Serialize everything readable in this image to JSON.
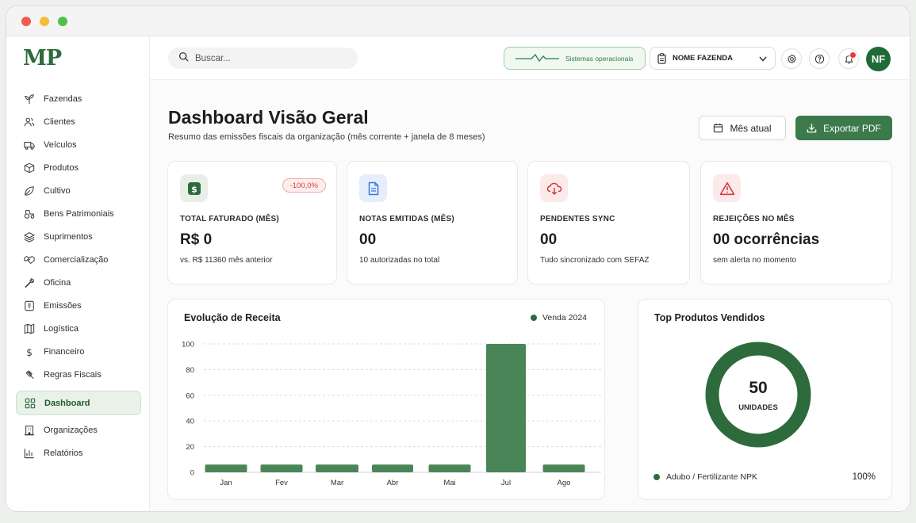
{
  "app": {
    "logo": "MP"
  },
  "sidebar": {
    "items": [
      {
        "label": "Fazendas",
        "icon": "sprout-icon"
      },
      {
        "label": "Clientes",
        "icon": "users-icon"
      },
      {
        "label": "Veículos",
        "icon": "truck-icon"
      },
      {
        "label": "Produtos",
        "icon": "box-icon"
      },
      {
        "label": "Cultivo",
        "icon": "leaf-icon"
      },
      {
        "label": "Bens Patrimoniais",
        "icon": "tractor-icon"
      },
      {
        "label": "Suprimentos",
        "icon": "layers-icon"
      },
      {
        "label": "Comercialização",
        "icon": "handshake-icon"
      },
      {
        "label": "Oficina",
        "icon": "wrench-icon"
      },
      {
        "label": "Emissões",
        "icon": "receipt-icon"
      },
      {
        "label": "Logística",
        "icon": "map-icon"
      },
      {
        "label": "Financeiro",
        "icon": "dollar-icon"
      },
      {
        "label": "Regras Fiscais",
        "icon": "gavel-icon"
      },
      {
        "label": "Dashboard",
        "icon": "grid-icon",
        "active": true
      },
      {
        "label": "Organizações",
        "icon": "building-icon"
      },
      {
        "label": "Relatórios",
        "icon": "bar-chart-icon"
      }
    ]
  },
  "topbar": {
    "search_placeholder": "Buscar...",
    "status_label": "Sistemas operacionais",
    "farm_label": "NOME FAZENDA",
    "avatar_initials": "NF"
  },
  "page": {
    "title": "Dashboard Visão Geral",
    "subtitle": "Resumo das emissões fiscais da organização (mês corrente + janela de 8 meses)",
    "month_button": "Mês atual",
    "export_button": "Exportar PDF"
  },
  "kpis": [
    {
      "label": "TOTAL FATURADO (MÊS)",
      "value": "R$ 0",
      "note": "vs. R$ 11360 mês anterior",
      "badge": "-100,0%",
      "icon": "dollar-icon",
      "color": "#2e6b3c"
    },
    {
      "label": "NOTAS EMITIDAS (MÊS)",
      "value": "00",
      "note": "10 autorizadas no total",
      "icon": "document-icon",
      "color": "#3a78d8"
    },
    {
      "label": "PENDENTES SYNC",
      "value": "00",
      "note": "Tudo sincronizado com SEFAZ",
      "icon": "cloud-icon",
      "color": "#d93a3a"
    },
    {
      "label": "REJEIÇÕES NO MÊS",
      "value": "00 ocorrências",
      "note": "sem alerta no momento",
      "icon": "warning-icon",
      "color": "#d93a3a"
    }
  ],
  "revenue_card": {
    "title": "Evolução de Receita"
  },
  "top_products": {
    "title": "Top Produtos Vendidos",
    "center_value": "50",
    "center_label": "UNIDADES",
    "items": [
      {
        "label": "Adubo / Fertilizante NPK",
        "pct": "100%"
      }
    ]
  },
  "chart_data": {
    "type": "bar",
    "categories": [
      "Jan",
      "Fev",
      "Mar",
      "Abr",
      "Mai",
      "Jul",
      "Ago"
    ],
    "series": [
      {
        "name": "Venda 2024",
        "values": [
          6,
          6,
          6,
          6,
          6,
          101,
          6
        ]
      }
    ],
    "ylim": [
      0,
      100
    ],
    "yticks": [
      0,
      20,
      40,
      60,
      80,
      100
    ],
    "grid": true,
    "legend": "top-right",
    "color": "#4a8558"
  }
}
